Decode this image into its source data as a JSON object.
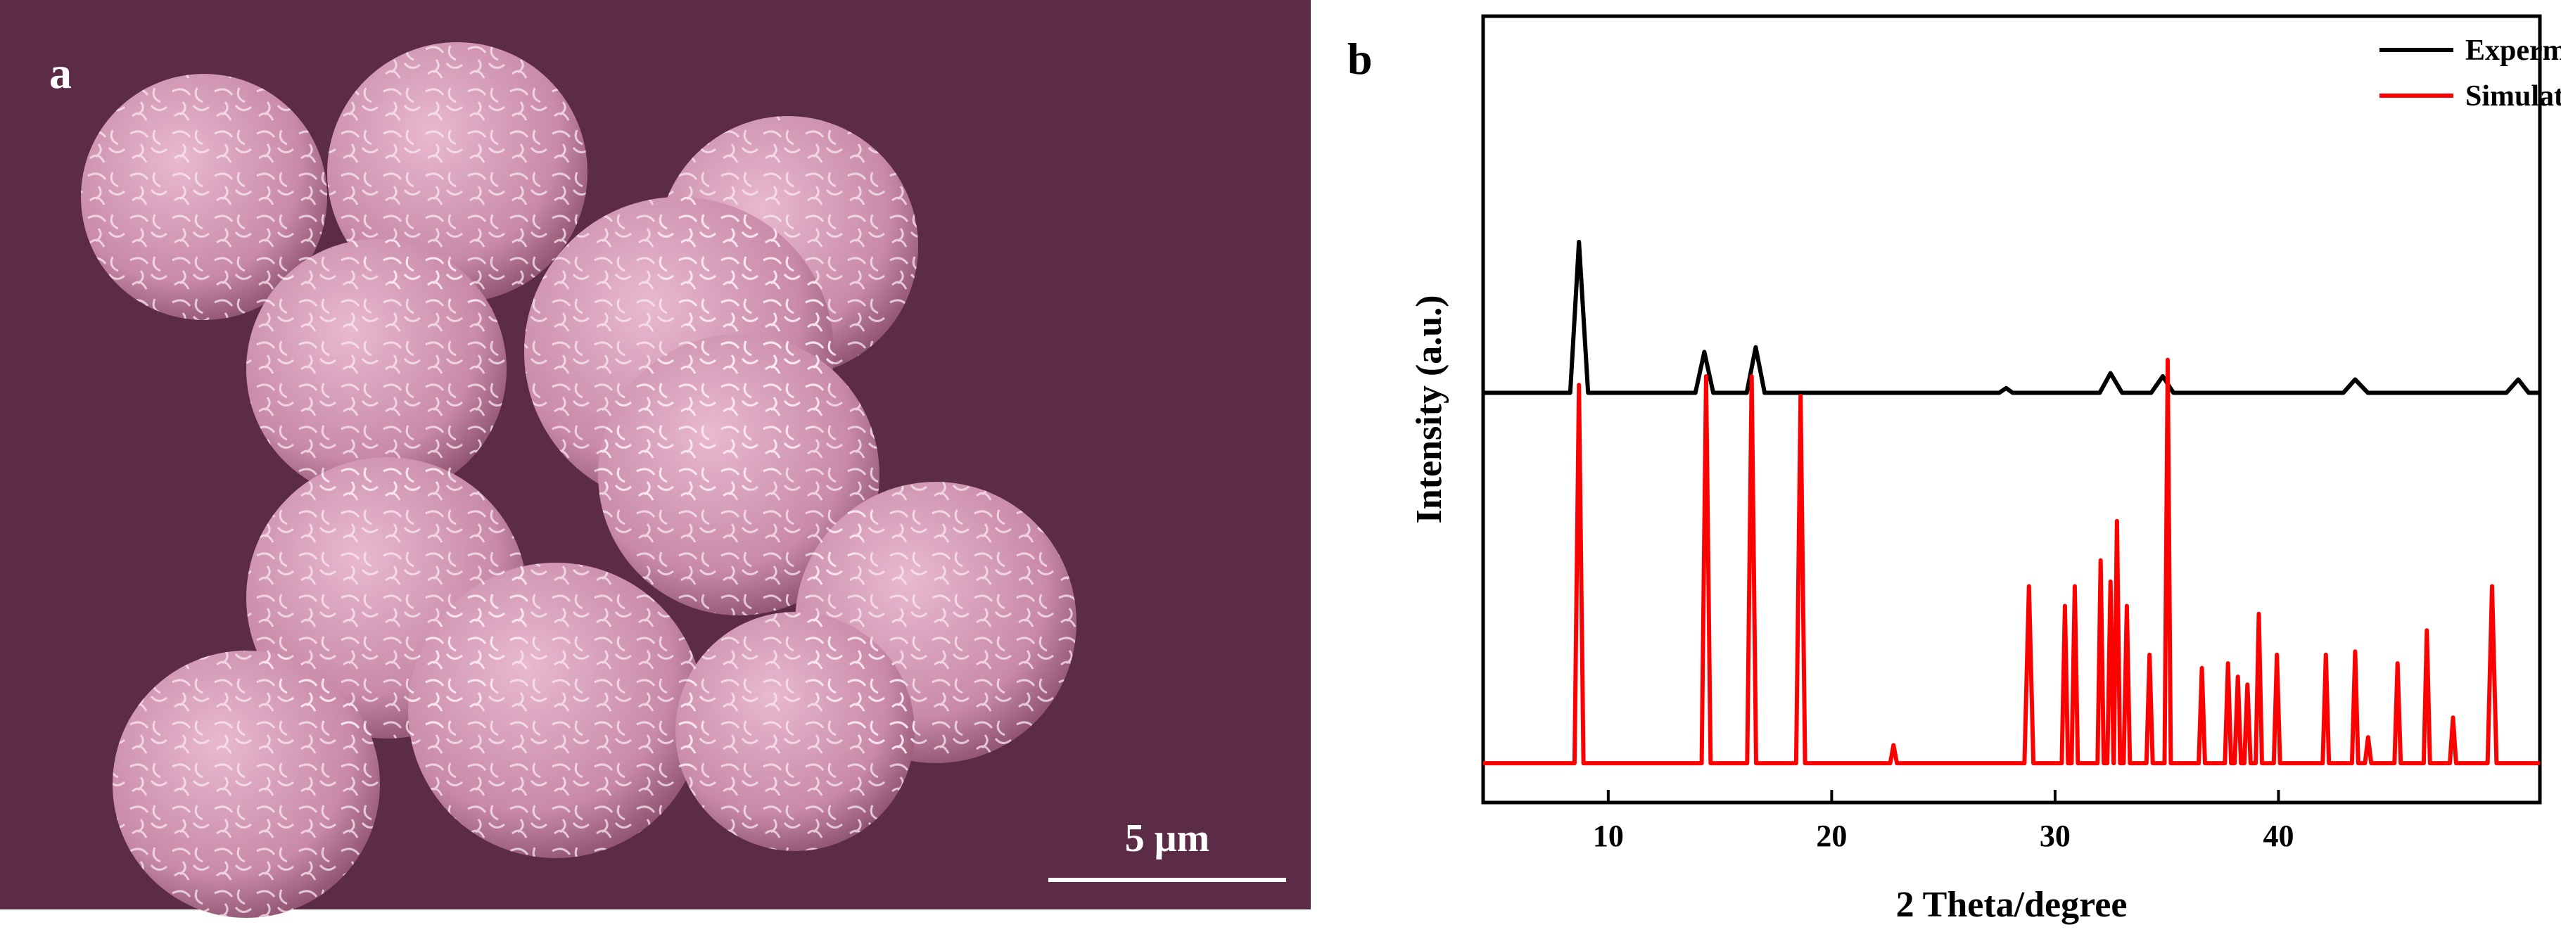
{
  "image_panel": {
    "label": "a",
    "scale_bar": "5 μm"
  },
  "chart_data": {
    "type": "line",
    "panel_label": "b",
    "xlabel": "2 Theta/degree",
    "ylabel": "Intensity (a.u.)",
    "xlim": [
      4.4,
      51.7
    ],
    "ylim": [
      0,
      100
    ],
    "xticks": [
      10,
      20,
      30,
      40
    ],
    "legend": "upper right",
    "series": [
      {
        "name": "Expermental",
        "color": "#000000",
        "x": [
          4.4,
          8.3,
          8.69,
          9.1,
          13.9,
          14.3,
          14.7,
          16.2,
          16.6,
          17.0,
          27.5,
          27.81,
          28.1,
          32.0,
          32.48,
          33.0,
          34.3,
          34.82,
          35.3,
          42.9,
          43.43,
          44.0,
          50.2,
          50.73,
          51.2,
          51.7
        ],
        "values": [
          52.1,
          52.1,
          71.3,
          52.1,
          52.1,
          57.3,
          52.1,
          52.1,
          57.9,
          52.1,
          52.1,
          52.7,
          52.1,
          52.1,
          54.6,
          52.1,
          52.1,
          54.2,
          52.1,
          52.1,
          53.8,
          52.1,
          52.1,
          53.8,
          52.1,
          52.1
        ]
      },
      {
        "name": "Simulated",
        "color": "#ff0000",
        "x": [
          4.4,
          8.49,
          8.69,
          8.89,
          14.18,
          14.38,
          14.58,
          16.22,
          16.42,
          16.62,
          18.41,
          18.61,
          18.81,
          22.62,
          22.77,
          22.92,
          28.63,
          28.83,
          29.03,
          30.3,
          30.44,
          30.58,
          30.74,
          30.88,
          31.02,
          31.9,
          32.04,
          32.18,
          32.34,
          32.48,
          32.62,
          32.63,
          32.77,
          32.91,
          33.07,
          33.21,
          33.35,
          34.09,
          34.23,
          34.37,
          34.9,
          35.04,
          35.18,
          36.43,
          36.57,
          36.71,
          37.6,
          37.74,
          37.88,
          38.04,
          38.18,
          38.32,
          38.47,
          38.61,
          38.75,
          38.98,
          39.12,
          39.26,
          39.79,
          39.93,
          40.07,
          41.98,
          42.12,
          42.26,
          43.29,
          43.43,
          43.57,
          43.87,
          44.01,
          44.15,
          45.19,
          45.33,
          45.47,
          46.5,
          46.64,
          46.78,
          47.67,
          47.81,
          47.95,
          49.36,
          49.56,
          49.76,
          51.7
        ],
        "values": [
          5,
          5,
          53.1,
          5,
          5,
          54.2,
          5,
          5,
          54.2,
          5,
          5,
          51.7,
          5,
          5,
          7.3,
          5,
          5,
          27.5,
          5,
          5,
          25.0,
          5,
          5,
          27.5,
          5,
          5,
          30.8,
          5,
          5,
          28.1,
          5,
          5,
          35.8,
          5,
          5,
          25.0,
          5,
          5,
          18.8,
          5,
          5,
          56.3,
          5,
          5,
          17.1,
          5,
          5,
          17.7,
          5,
          5,
          16.0,
          5,
          5,
          15.0,
          5,
          5,
          24.0,
          5,
          5,
          18.8,
          5,
          5,
          18.8,
          5,
          5,
          19.2,
          5,
          5,
          8.3,
          5,
          5,
          17.7,
          5,
          5,
          21.9,
          5,
          5,
          10.8,
          5,
          5,
          27.5,
          5,
          5
        ]
      }
    ]
  }
}
